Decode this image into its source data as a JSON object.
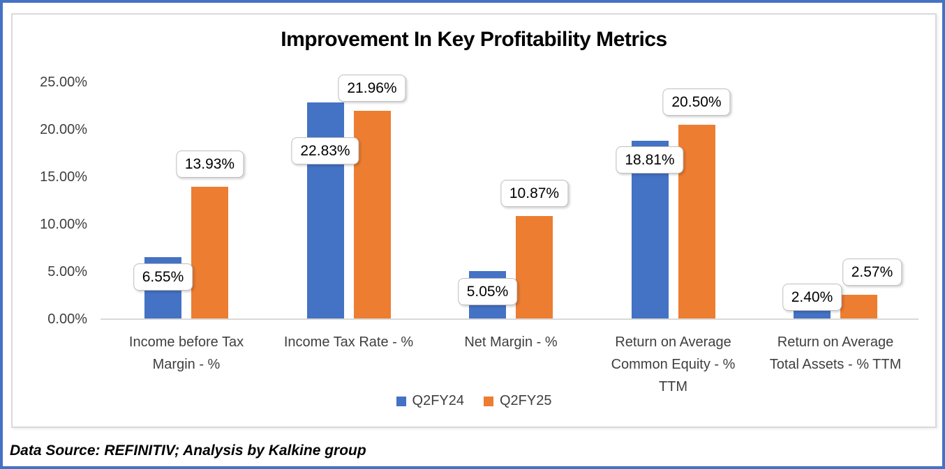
{
  "chart_data": {
    "type": "bar",
    "title": "Improvement In Key Profitability Metrics",
    "categories": [
      "Income before Tax Margin - %",
      "Income Tax Rate - %",
      "Net Margin - %",
      "Return on Average Common Equity - % TTM",
      "Return on Average Total Assets - % TTM"
    ],
    "series": [
      {
        "name": "Q2FY24",
        "color": "#4472C4",
        "values": [
          6.55,
          22.83,
          5.05,
          18.81,
          2.4
        ],
        "labels": [
          "6.55%",
          "22.83%",
          "5.05%",
          "18.81%",
          "2.40%"
        ]
      },
      {
        "name": "Q2FY25",
        "color": "#ED7D31",
        "values": [
          13.93,
          21.96,
          10.87,
          20.5,
          2.57
        ],
        "labels": [
          "13.93%",
          "21.96%",
          "10.87%",
          "20.50%",
          "2.57%"
        ]
      }
    ],
    "y_axis": {
      "min": 0,
      "max": 25,
      "tick_step": 5,
      "grid": false,
      "ticks": [
        {
          "value": 0,
          "label": "0.00%"
        },
        {
          "value": 5,
          "label": "5.00%"
        },
        {
          "value": 10,
          "label": "10.00%"
        },
        {
          "value": 15,
          "label": "15.00%"
        },
        {
          "value": 20,
          "label": "20.00%"
        },
        {
          "value": 25,
          "label": "25.00%"
        }
      ]
    },
    "legend": {
      "position": "bottom",
      "entries": [
        "Q2FY24",
        "Q2FY25"
      ]
    },
    "data_source": "Data Source: REFINITIV; Analysis by Kalkine group"
  },
  "colors": {
    "outer_border": "#4472C4",
    "chart_border": "#D9D9D9",
    "axis_line": "#D9D9D9",
    "axis_text": "#3f3f3f",
    "label_box_border": "#BFBFBF",
    "series_q2fy24": "#4472C4",
    "series_q2fy25": "#ED7D31"
  }
}
